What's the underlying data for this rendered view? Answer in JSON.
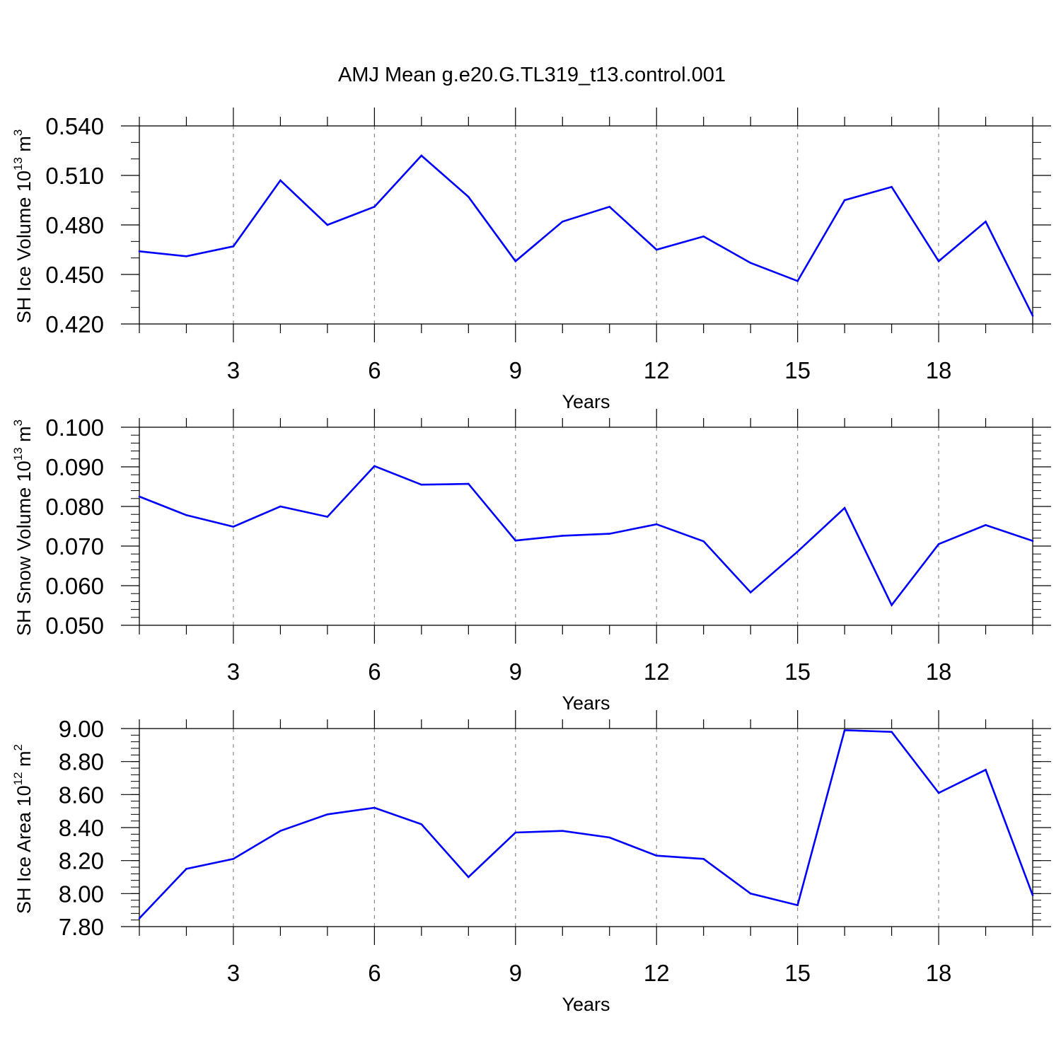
{
  "title": "AMJ Mean g.e20.G.TL319_t13.control.001",
  "style": {
    "line_color": "#0000ff",
    "grid_color": "#888888",
    "axis_color": "#000000"
  },
  "chart_data": [
    {
      "type": "line",
      "xlabel": "Years",
      "ylabel": {
        "text": "SH Ice Volume 10",
        "exp": "13",
        "unit": "m",
        "unit_exp": "3"
      },
      "xlim": [
        1,
        20
      ],
      "ylim": [
        0.42,
        0.54
      ],
      "xticks": [
        3,
        6,
        9,
        12,
        15,
        18
      ],
      "xtick_labels": [
        "3",
        "6",
        "9",
        "12",
        "15",
        "18"
      ],
      "yticks": [
        0.42,
        0.45,
        0.48,
        0.51,
        0.54
      ],
      "ytick_labels": [
        "0.420",
        "0.450",
        "0.480",
        "0.510",
        "0.540"
      ],
      "yminor_step": 0.01,
      "grid": "vertical dashed at major x ticks",
      "x": [
        1,
        2,
        3,
        4,
        5,
        6,
        7,
        8,
        9,
        10,
        11,
        12,
        13,
        14,
        15,
        16,
        17,
        18,
        19,
        20
      ],
      "values": [
        0.464,
        0.461,
        0.467,
        0.507,
        0.48,
        0.491,
        0.522,
        0.497,
        0.458,
        0.482,
        0.491,
        0.465,
        0.473,
        0.457,
        0.446,
        0.495,
        0.503,
        0.458,
        0.482,
        0.425
      ]
    },
    {
      "type": "line",
      "xlabel": "Years",
      "ylabel": {
        "text": "SH Snow Volume 10",
        "exp": "13",
        "unit": "m",
        "unit_exp": "3"
      },
      "xlim": [
        1,
        20
      ],
      "ylim": [
        0.05,
        0.1
      ],
      "xticks": [
        3,
        6,
        9,
        12,
        15,
        18
      ],
      "xtick_labels": [
        "3",
        "6",
        "9",
        "12",
        "15",
        "18"
      ],
      "yticks": [
        0.05,
        0.06,
        0.07,
        0.08,
        0.09,
        0.1
      ],
      "ytick_labels": [
        "0.050",
        "0.060",
        "0.070",
        "0.080",
        "0.090",
        "0.100"
      ],
      "yminor_step": 0.002,
      "grid": "vertical dashed at major x ticks",
      "x": [
        1,
        2,
        3,
        4,
        5,
        6,
        7,
        8,
        9,
        10,
        11,
        12,
        13,
        14,
        15,
        16,
        17,
        18,
        19,
        20
      ],
      "values": [
        0.0825,
        0.0778,
        0.0749,
        0.08,
        0.0774,
        0.0902,
        0.0855,
        0.0857,
        0.0714,
        0.0726,
        0.0731,
        0.0755,
        0.0712,
        0.0583,
        0.0686,
        0.0796,
        0.0551,
        0.0705,
        0.0753,
        0.0713
      ]
    },
    {
      "type": "line",
      "xlabel": "Years",
      "ylabel": {
        "text": "SH Ice Area 10",
        "exp": "12",
        "unit": "m",
        "unit_exp": "2"
      },
      "xlim": [
        1,
        20
      ],
      "ylim": [
        7.8,
        9.0
      ],
      "xticks": [
        3,
        6,
        9,
        12,
        15,
        18
      ],
      "xtick_labels": [
        "3",
        "6",
        "9",
        "12",
        "15",
        "18"
      ],
      "yticks": [
        7.8,
        8.0,
        8.2,
        8.4,
        8.6,
        8.8,
        9.0
      ],
      "ytick_labels": [
        "7.80",
        "8.00",
        "8.20",
        "8.40",
        "8.60",
        "8.80",
        "9.00"
      ],
      "yminor_step": 0.04,
      "grid": "vertical dashed at major x ticks",
      "x": [
        1,
        2,
        3,
        4,
        5,
        6,
        7,
        8,
        9,
        10,
        11,
        12,
        13,
        14,
        15,
        16,
        17,
        18,
        19,
        20
      ],
      "values": [
        7.85,
        8.15,
        8.21,
        8.38,
        8.48,
        8.52,
        8.42,
        8.1,
        8.37,
        8.38,
        8.34,
        8.23,
        8.21,
        8.0,
        7.93,
        8.99,
        8.98,
        8.61,
        8.75,
        7.99
      ]
    }
  ]
}
